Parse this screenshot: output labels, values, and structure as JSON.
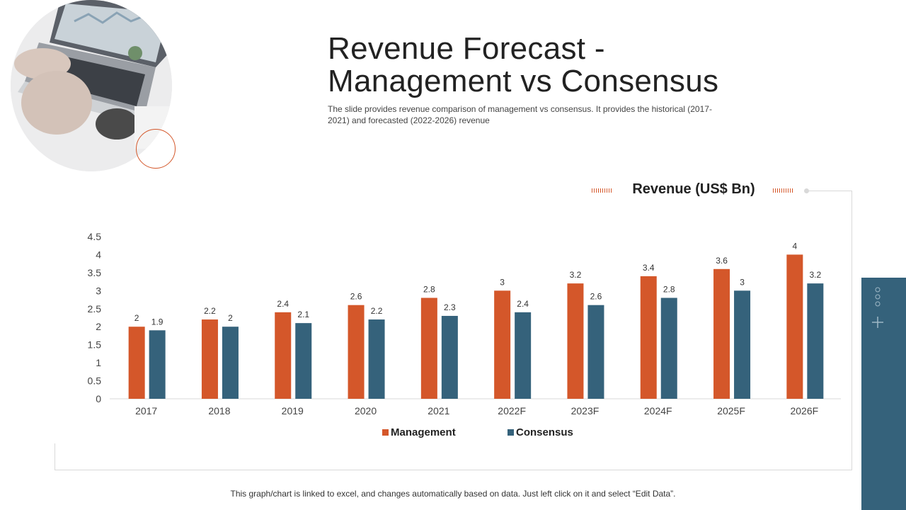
{
  "slide": {
    "title_line1": "Revenue Forecast -",
    "title_line2": "Management vs Consensus",
    "subtitle": "The slide provides revenue  comparison of management vs consensus. It provides  the historical  (2017-2021)  and forecasted  (2022-2026)  revenue",
    "footer": "This graph/chart is linked to excel, and changes automatically based on data. Just left click on it and select “Edit Data”."
  },
  "colors": {
    "management": "#d4572a",
    "consensus": "#35627b",
    "accent": "#d4572a",
    "panel": "#35627b"
  },
  "icons": {
    "side_panel_dots": "vertical-dots-icon",
    "side_panel_plus": "plus-icon"
  },
  "chart_data": {
    "type": "bar",
    "title": "Revenue (US$ Bn)",
    "categories": [
      "2017",
      "2018",
      "2019",
      "2020",
      "2021",
      "2022F",
      "2023F",
      "2024F",
      "2025F",
      "2026F"
    ],
    "series": [
      {
        "name": "Management",
        "values": [
          2,
          2.2,
          2.4,
          2.6,
          2.8,
          3,
          3.2,
          3.4,
          3.6,
          4
        ]
      },
      {
        "name": "Consensus",
        "values": [
          1.9,
          2,
          2.1,
          2.2,
          2.3,
          2.4,
          2.6,
          2.8,
          3,
          3.2
        ]
      }
    ],
    "yticks": [
      "0",
      "0.5",
      "1",
      "1.5",
      "2",
      "2.5",
      "3",
      "3.5",
      "4",
      "4.5"
    ],
    "ylim": [
      0,
      4.5
    ],
    "xlabel": "",
    "ylabel": "",
    "legend_position": "bottom",
    "grid": false
  }
}
